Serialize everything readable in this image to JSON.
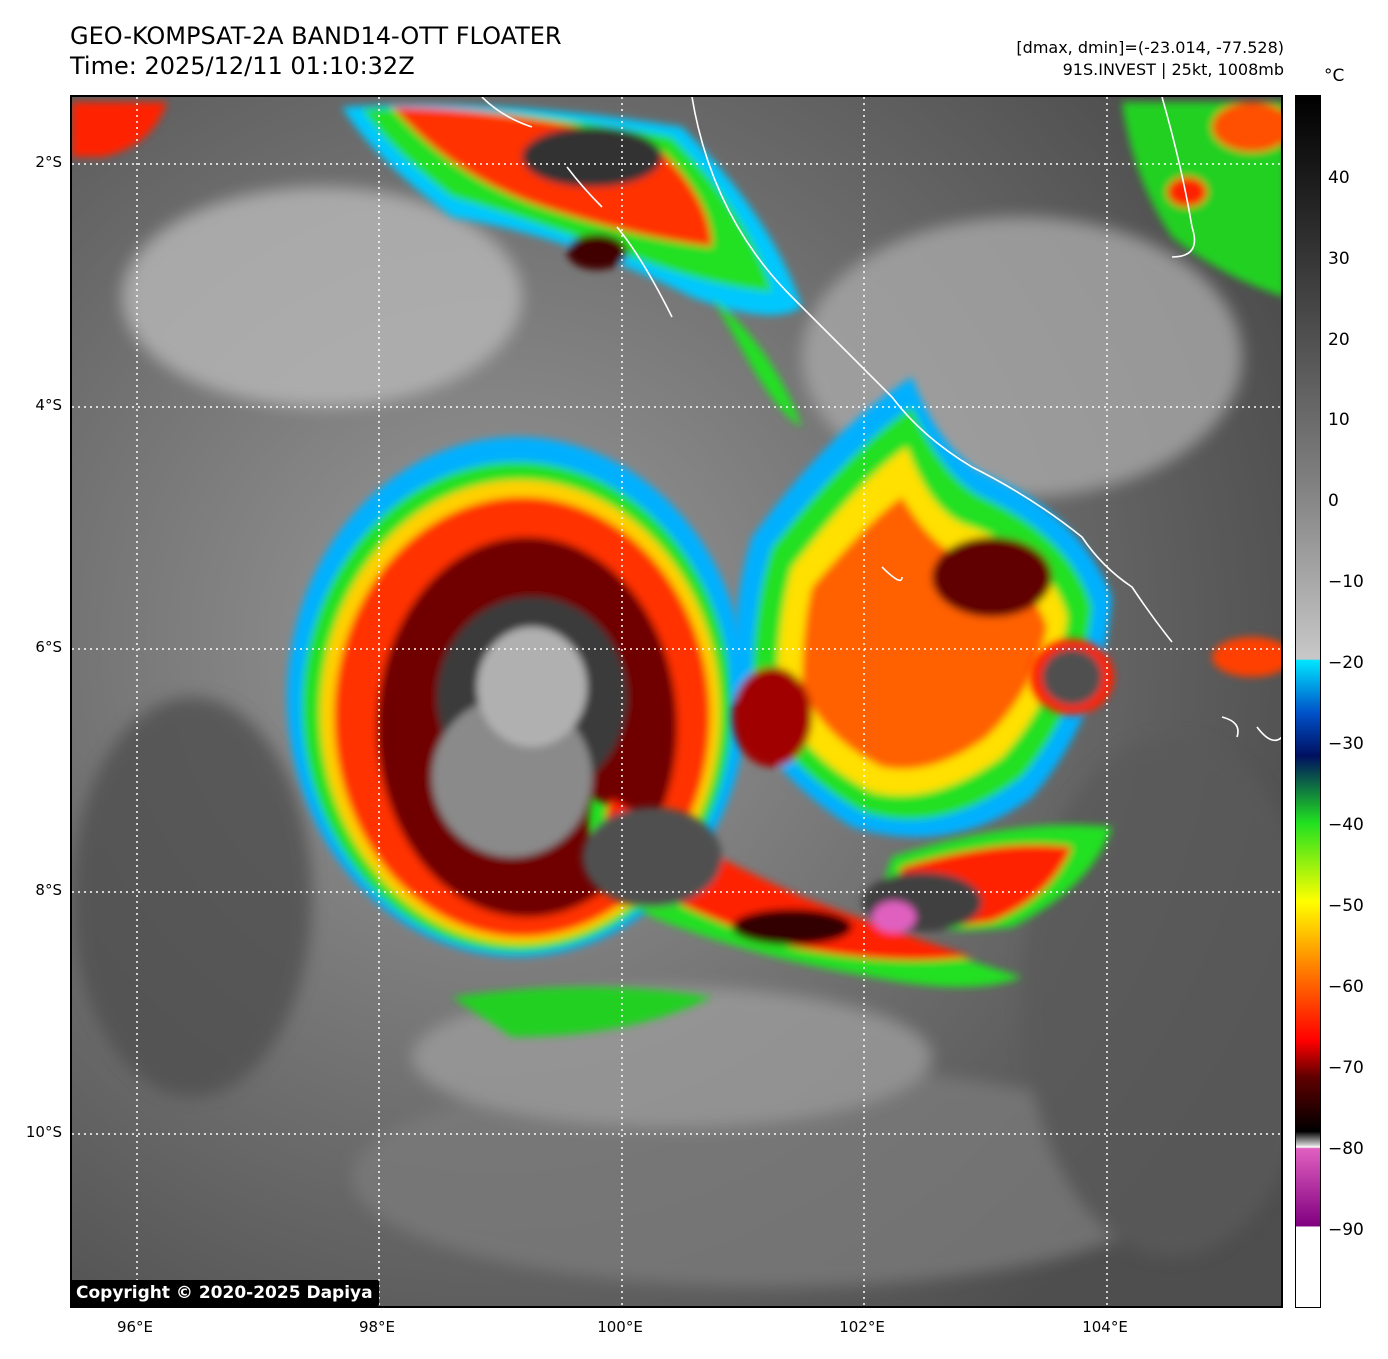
{
  "header": {
    "title_line1": "GEO-KOMPSAT-2A BAND14-OTT FLOATER",
    "title_line2": "Time: 2025/12/11 01:10:32Z",
    "stats": "[dmax, dmin]=(-23.014, -77.528)",
    "storm": "91S.INVEST | 25kt, 1008mb"
  },
  "map": {
    "lat_labels": [
      "2°S",
      "4°S",
      "6°S",
      "8°S",
      "10°S"
    ],
    "lon_labels": [
      "96°E",
      "98°E",
      "100°E",
      "102°E",
      "104°E"
    ],
    "copyright": "Copyright © 2020-2025 Dapiya"
  },
  "colorbar": {
    "unit": "°C",
    "ticks": [
      "40",
      "30",
      "20",
      "10",
      "0",
      "−10",
      "−20",
      "−30",
      "−40",
      "−50",
      "−60",
      "−70",
      "−80",
      "−90"
    ],
    "colors": {
      "warm_top": "#000000",
      "warm_mid": "#808080",
      "cold_gray": "#c8c8c8",
      "cyan": "#00e5ff",
      "blue": "#0050c8",
      "navy": "#001060",
      "green": "#20e020",
      "yellow": "#ffff00",
      "orange": "#ff8000",
      "red": "#ff0000",
      "dark_red": "#600000",
      "black_cold": "#000000",
      "magenta": "#e060c0",
      "purple": "#800080",
      "white": "#ffffff"
    }
  }
}
